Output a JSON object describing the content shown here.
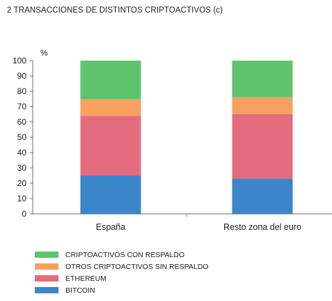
{
  "chart_data": {
    "type": "bar",
    "stacked": true,
    "title": "2  TRANSACCIONES DE DISTINTOS CRIPTOACTIVOS (c)",
    "ylabel": "%",
    "ylim": [
      0,
      100
    ],
    "yticks": [
      0,
      10,
      20,
      30,
      40,
      50,
      60,
      70,
      80,
      90,
      100
    ],
    "grid": false,
    "legend_position": "bottom",
    "categories": [
      "España",
      "Resto zona del euro"
    ],
    "series": [
      {
        "name": "BITCOIN",
        "color": "#3a86c8",
        "values": [
          25,
          23
        ]
      },
      {
        "name": "ETHEREUM",
        "color": "#e56c7e",
        "values": [
          39,
          42
        ]
      },
      {
        "name": "OTROS CRIPTOACTIVOS SIN RESPALDO",
        "color": "#f9a060",
        "values": [
          11,
          11
        ]
      },
      {
        "name": "CRIPTOACTIVOS CON RESPALDO",
        "color": "#5ec46e",
        "values": [
          25,
          24
        ]
      }
    ],
    "legend_order": [
      "CRIPTOACTIVOS CON RESPALDO",
      "OTROS CRIPTOACTIVOS SIN RESPALDO",
      "ETHEREUM",
      "BITCOIN"
    ]
  }
}
